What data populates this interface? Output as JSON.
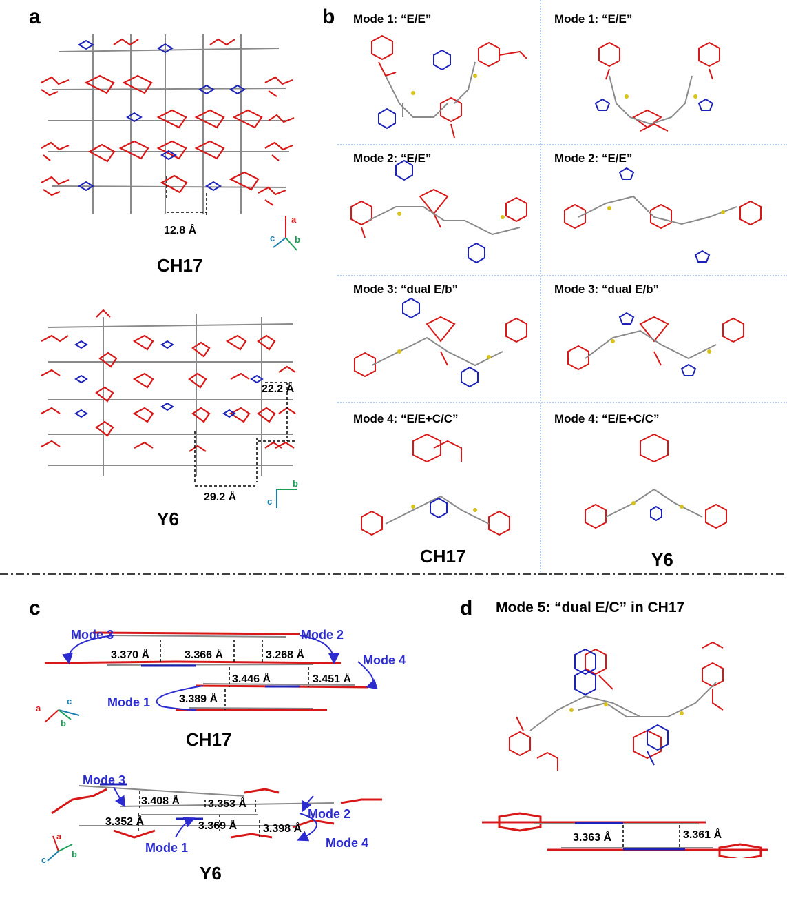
{
  "panels": {
    "a": {
      "letter": "a",
      "ch17": {
        "label": "CH17",
        "distance": "12.8 Å",
        "axes": [
          "a",
          "c",
          "b"
        ]
      },
      "y6": {
        "label": "Y6",
        "distance_v": "22.2 Å",
        "distance_h": "29.2 Å",
        "axes": [
          "b",
          "c"
        ]
      }
    },
    "b": {
      "letter": "b",
      "left_titles": [
        "Mode 1: “E/E”",
        "Mode 2: “E/E”",
        "Mode 3: “dual E/b”",
        "Mode 4: “E/E+C/C”"
      ],
      "right_titles": [
        "Mode 1: “E/E”",
        "Mode 2: “E/E”",
        "Mode 3: “dual E/b”",
        "Mode 4: “E/E+C/C”"
      ],
      "left_label": "CH17",
      "right_label": "Y6"
    },
    "c": {
      "letter": "c",
      "ch17": {
        "label": "CH17",
        "modes": [
          "Mode 3",
          "Mode 2",
          "Mode 4",
          "Mode 1"
        ],
        "distances": [
          "3.370 Å",
          "3.366 Å",
          "3.268 Å",
          "3.446 Å",
          "3.451 Å",
          "3.389 Å"
        ],
        "axes": [
          "a",
          "c",
          "b"
        ]
      },
      "y6": {
        "label": "Y6",
        "modes": [
          "Mode 3",
          "Mode 2",
          "Mode 1",
          "Mode 4"
        ],
        "distances": [
          "3.408 Å",
          "3.353 Å",
          "3.352 Å",
          "3.369 Å",
          "3.398 Å"
        ],
        "axes": [
          "a",
          "c",
          "b"
        ]
      }
    },
    "d": {
      "letter": "d",
      "title": "Mode 5: “dual E/C” in CH17",
      "distances": [
        "3.363 Å",
        "3.361 Å"
      ]
    }
  },
  "colors": {
    "red": "#d81818",
    "blue": "#1c22b8",
    "gray": "#8a8a8a",
    "yellow": "#d8c21a",
    "mode_blue": "#2b2bd0",
    "divider": "#6a9bd8"
  }
}
